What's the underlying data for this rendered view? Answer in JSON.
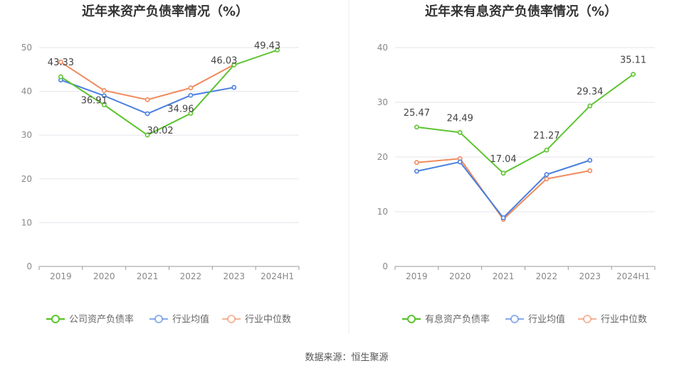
{
  "source_text": "数据来源：恒生聚源",
  "chart_data": [
    {
      "type": "line",
      "title": "近年来资产负债率情况（%）",
      "categories": [
        "2019",
        "2020",
        "2021",
        "2022",
        "2023",
        "2024H1"
      ],
      "ylim": [
        0,
        50
      ],
      "yticks": [
        0,
        10,
        20,
        30,
        40,
        50
      ],
      "grid": true,
      "legend_position": "bottom",
      "series": [
        {
          "name": "公司资产负债率",
          "color": "#5cc42f",
          "values": [
            43.33,
            36.91,
            30.02,
            34.96,
            46.03,
            49.43
          ],
          "labels": [
            "43.33",
            "36.91",
            "30.02",
            "34.96",
            "46.03",
            "49.43"
          ]
        },
        {
          "name": "行业均值",
          "color": "#4a7fe0",
          "values": [
            42.6,
            39.0,
            34.9,
            39.1,
            40.9,
            null
          ]
        },
        {
          "name": "行业中位数",
          "color": "#f08a5d",
          "values": [
            46.7,
            40.2,
            38.1,
            40.8,
            46.1,
            null
          ]
        }
      ]
    },
    {
      "type": "line",
      "title": "近年来有息资产负债率情况（%）",
      "categories": [
        "2019",
        "2020",
        "2021",
        "2022",
        "2023",
        "2024H1"
      ],
      "ylim": [
        0,
        40
      ],
      "yticks": [
        0,
        10,
        20,
        30,
        40
      ],
      "grid": true,
      "legend_position": "bottom",
      "series": [
        {
          "name": "有息资产负债率",
          "color": "#5cc42f",
          "values": [
            25.47,
            24.49,
            17.04,
            21.27,
            29.34,
            35.11
          ],
          "labels": [
            "25.47",
            "24.49",
            "17.04",
            "21.27",
            "29.34",
            "35.11"
          ]
        },
        {
          "name": "行业均值",
          "color": "#4a7fe0",
          "values": [
            17.4,
            19.1,
            8.9,
            16.8,
            19.4,
            null
          ]
        },
        {
          "name": "行业中位数",
          "color": "#f08a5d",
          "values": [
            19.0,
            19.7,
            8.6,
            16.0,
            17.5,
            null
          ]
        }
      ]
    }
  ]
}
